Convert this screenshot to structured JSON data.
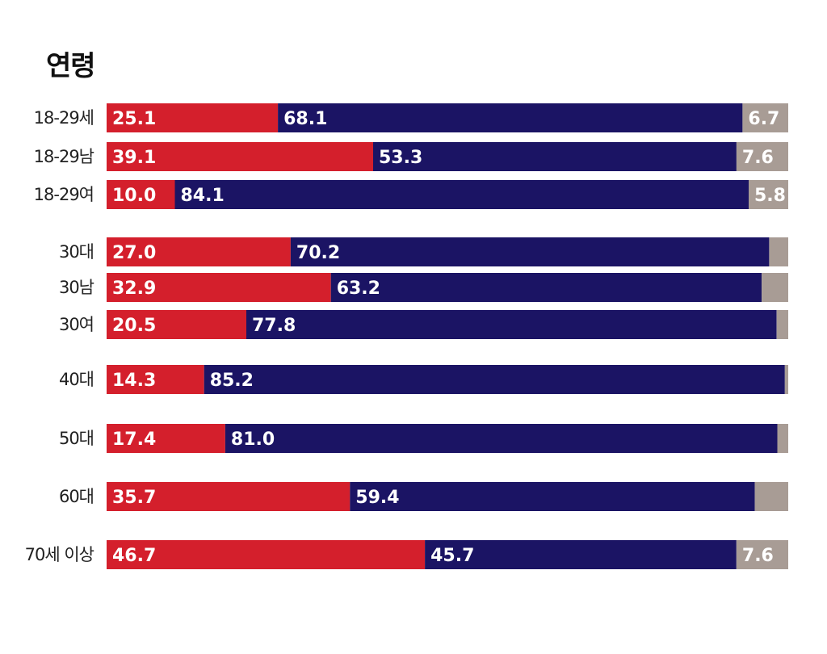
{
  "chart_data": {
    "type": "bar",
    "orientation": "horizontal",
    "stacked": true,
    "title": "연령",
    "xlim": [
      0,
      100
    ],
    "grid": false,
    "legend": "none",
    "colors": [
      "#d41f2c",
      "#1b1464",
      "#a89c95"
    ],
    "categories": [
      "18-29세",
      "18-29남",
      "18-29여",
      "30대",
      "30남",
      "30여",
      "40대",
      "50대",
      "60대",
      "70세 이상"
    ],
    "series": [
      {
        "values": [
          25.1,
          39.1,
          10.0,
          27.0,
          32.9,
          20.5,
          14.3,
          17.4,
          35.7,
          46.7
        ]
      },
      {
        "values": [
          68.1,
          53.3,
          84.1,
          70.2,
          63.2,
          77.8,
          85.2,
          81.0,
          59.4,
          45.7
        ]
      },
      {
        "values": [
          6.7,
          7.6,
          5.8,
          2.8,
          3.9,
          1.7,
          0.5,
          1.6,
          4.9,
          7.6
        ]
      }
    ],
    "data_labels": [
      [
        "25.1",
        "68.1",
        "6.7"
      ],
      [
        "39.1",
        "53.3",
        "7.6"
      ],
      [
        "10.0",
        "84.1",
        "5.8"
      ],
      [
        "27.0",
        "70.2",
        ""
      ],
      [
        "32.9",
        "63.2",
        ""
      ],
      [
        "20.5",
        "77.8",
        ""
      ],
      [
        "14.3",
        "85.2",
        ""
      ],
      [
        "17.4",
        "81.0",
        ""
      ],
      [
        "35.7",
        "59.4",
        ""
      ],
      [
        "46.7",
        "45.7",
        "7.6"
      ]
    ]
  }
}
